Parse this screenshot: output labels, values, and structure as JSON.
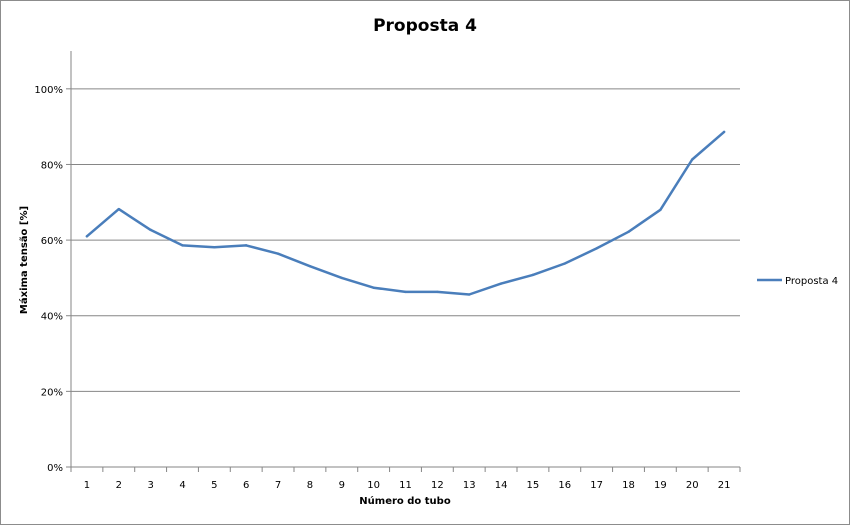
{
  "chart_data": {
    "type": "line",
    "title": "Proposta 4",
    "xlabel": "Número do tubo",
    "ylabel": "Máxima tensão [%]",
    "categories": [
      "1",
      "2",
      "3",
      "4",
      "5",
      "6",
      "7",
      "8",
      "9",
      "10",
      "11",
      "12",
      "13",
      "14",
      "15",
      "16",
      "17",
      "18",
      "19",
      "20",
      "21"
    ],
    "series": [
      {
        "name": "Proposta 4",
        "color": "#4a7ebb",
        "values": [
          61.0,
          68.2,
          62.7,
          58.6,
          58.1,
          58.6,
          56.4,
          53.1,
          50.0,
          47.4,
          46.3,
          46.3,
          45.6,
          48.5,
          50.8,
          53.8,
          57.8,
          62.2,
          68.0,
          81.3,
          88.6
        ]
      }
    ],
    "ylim": [
      0,
      110
    ],
    "yticks": [
      "0%",
      "20%",
      "40%",
      "60%",
      "80%",
      "100%"
    ],
    "ytick_values": [
      0,
      20,
      40,
      60,
      80,
      100
    ],
    "grid": true,
    "legend_position": "right"
  }
}
